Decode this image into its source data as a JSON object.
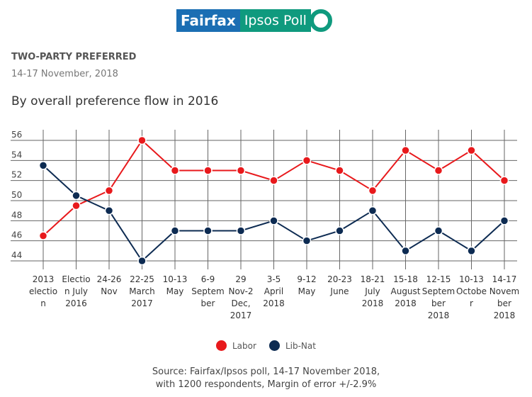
{
  "logo": {
    "text_left": "Fairfax",
    "text_right": "Ipsos Poll",
    "colors": {
      "blue": "#1b6eb3",
      "green": "#0f9a7e"
    }
  },
  "header": {
    "kicker": "TWO-PARTY PREFERRED",
    "date": "14-17 November, 2018",
    "subtitle": "By overall preference flow in 2016"
  },
  "chart_data": {
    "type": "line",
    "ylim": [
      44,
      56
    ],
    "yticks": [
      44,
      46,
      48,
      50,
      52,
      54,
      56
    ],
    "grid": true,
    "legend_position": "bottom",
    "categories": [
      [
        "2013",
        "electio",
        "n"
      ],
      [
        "Electio",
        "n July",
        "2016"
      ],
      [
        "24-26",
        "Nov"
      ],
      [
        "22-25",
        "March",
        "2017"
      ],
      [
        "10-13",
        "May"
      ],
      [
        "6-9",
        "Septem",
        "ber"
      ],
      [
        "29",
        "Nov-2",
        "Dec,",
        "2017"
      ],
      [
        "3-5",
        "April",
        "2018"
      ],
      [
        "9-12",
        "May"
      ],
      [
        "20-23",
        "June"
      ],
      [
        "18-21",
        "July",
        "2018"
      ],
      [
        "15-18",
        "August",
        "2018"
      ],
      [
        "12-15",
        "Septem",
        "ber",
        "2018"
      ],
      [
        "10-13",
        "Octobe",
        "r"
      ],
      [
        "14-17",
        "Novem",
        "ber",
        "2018"
      ]
    ],
    "series": [
      {
        "name": "Labor",
        "color": "#e8191c",
        "values": [
          46.5,
          49.5,
          51,
          56,
          53,
          53,
          53,
          52,
          54,
          53,
          51,
          55,
          53,
          55,
          52
        ]
      },
      {
        "name": "Lib-Nat",
        "color": "#0d2b52",
        "values": [
          53.5,
          50.5,
          49,
          44,
          47,
          47,
          47,
          48,
          46,
          47,
          49,
          45,
          47,
          45,
          48
        ]
      }
    ]
  },
  "source": {
    "line1": "Source: Fairfax/Ipsos poll, 14-17 November 2018,",
    "line2": "with 1200 respondents, Margin of error +/-2.9%"
  }
}
